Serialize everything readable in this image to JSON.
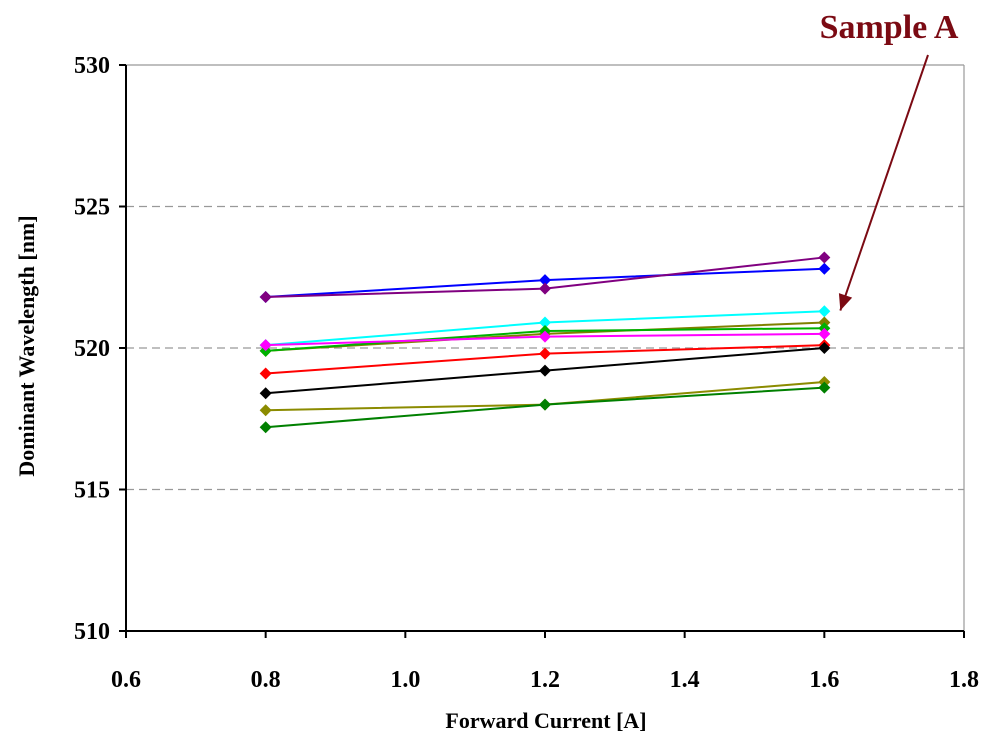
{
  "chart_data": {
    "type": "line",
    "title": "",
    "xlabel": "Forward Current [A]",
    "ylabel": "Dominant Wavelength [nm]",
    "xlim": [
      0.6,
      1.8
    ],
    "ylim": [
      510,
      530
    ],
    "xticks": [
      "0.6",
      "0.8",
      "1.0",
      "1.2",
      "1.4",
      "1.6",
      "1.8"
    ],
    "yticks": [
      "510",
      "515",
      "520",
      "525",
      "530"
    ],
    "grid": "horizontal dashed",
    "legend": "none",
    "x": [
      0.8,
      1.2,
      1.6
    ],
    "series": [
      {
        "color": "#0000ff",
        "values": [
          521.8,
          522.4,
          522.8
        ]
      },
      {
        "color": "#800080",
        "values": [
          521.8,
          522.1,
          523.2
        ]
      },
      {
        "color": "#00ffff",
        "values": [
          520.1,
          520.9,
          521.3
        ]
      },
      {
        "color": "#808000",
        "values": [
          519.9,
          520.5,
          520.9
        ]
      },
      {
        "color": "#00b000",
        "values": [
          519.9,
          520.6,
          520.7
        ]
      },
      {
        "color": "#ff00ff",
        "values": [
          520.1,
          520.4,
          520.5
        ]
      },
      {
        "color": "#ff0000",
        "values": [
          519.1,
          519.8,
          520.1
        ]
      },
      {
        "color": "#000000",
        "values": [
          518.4,
          519.2,
          520.0
        ]
      },
      {
        "color": "#8b8b00",
        "values": [
          517.8,
          518.0,
          518.8
        ]
      },
      {
        "color": "#008000",
        "values": [
          517.2,
          518.0,
          518.6
        ]
      }
    ],
    "annotation": {
      "text": "Sample A",
      "color": "#7b0a13",
      "points_to": {
        "x": 1.6,
        "y": 520.9
      }
    }
  }
}
